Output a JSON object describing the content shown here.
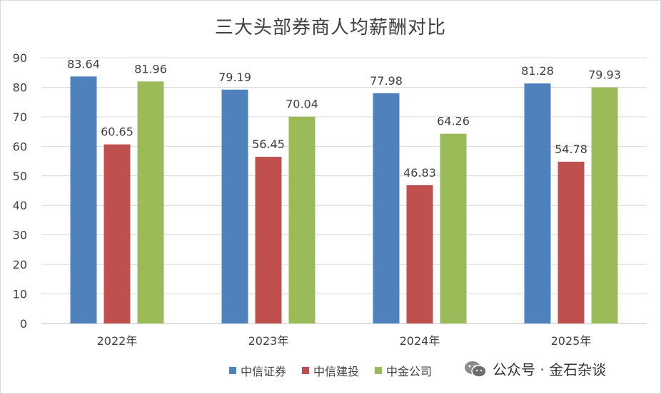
{
  "chart_data": {
    "type": "bar",
    "title": "三大头部券商人均薪酬对比",
    "categories": [
      "2022年",
      "2023年",
      "2024年",
      "2025年"
    ],
    "series": [
      {
        "name": "中信证券",
        "color": "#4f81bd",
        "values": [
          83.64,
          79.19,
          77.98,
          81.28
        ],
        "labels": [
          "83.64",
          "79.19",
          "77.98",
          "81.28"
        ]
      },
      {
        "name": "中信建投",
        "color": "#c0504d",
        "values": [
          60.65,
          56.45,
          46.83,
          54.78
        ],
        "labels": [
          "60.65",
          "56.45",
          "46.83",
          "54.78"
        ]
      },
      {
        "name": "中金公司",
        "color": "#9bbb59",
        "values": [
          81.96,
          70.04,
          64.26,
          79.93
        ],
        "labels": [
          "81.96",
          "70.04",
          "64.26",
          "79.93"
        ]
      }
    ],
    "y_ticks": [
      "0",
      "10",
      "20",
      "30",
      "40",
      "50",
      "60",
      "70",
      "80",
      "90"
    ],
    "ylim": [
      0,
      90
    ],
    "xlabel": "",
    "ylabel": "",
    "grid": true,
    "legend_position": "bottom"
  },
  "watermark": {
    "text": "公众号 · 金石杂谈",
    "icon": "wechat-icon"
  }
}
